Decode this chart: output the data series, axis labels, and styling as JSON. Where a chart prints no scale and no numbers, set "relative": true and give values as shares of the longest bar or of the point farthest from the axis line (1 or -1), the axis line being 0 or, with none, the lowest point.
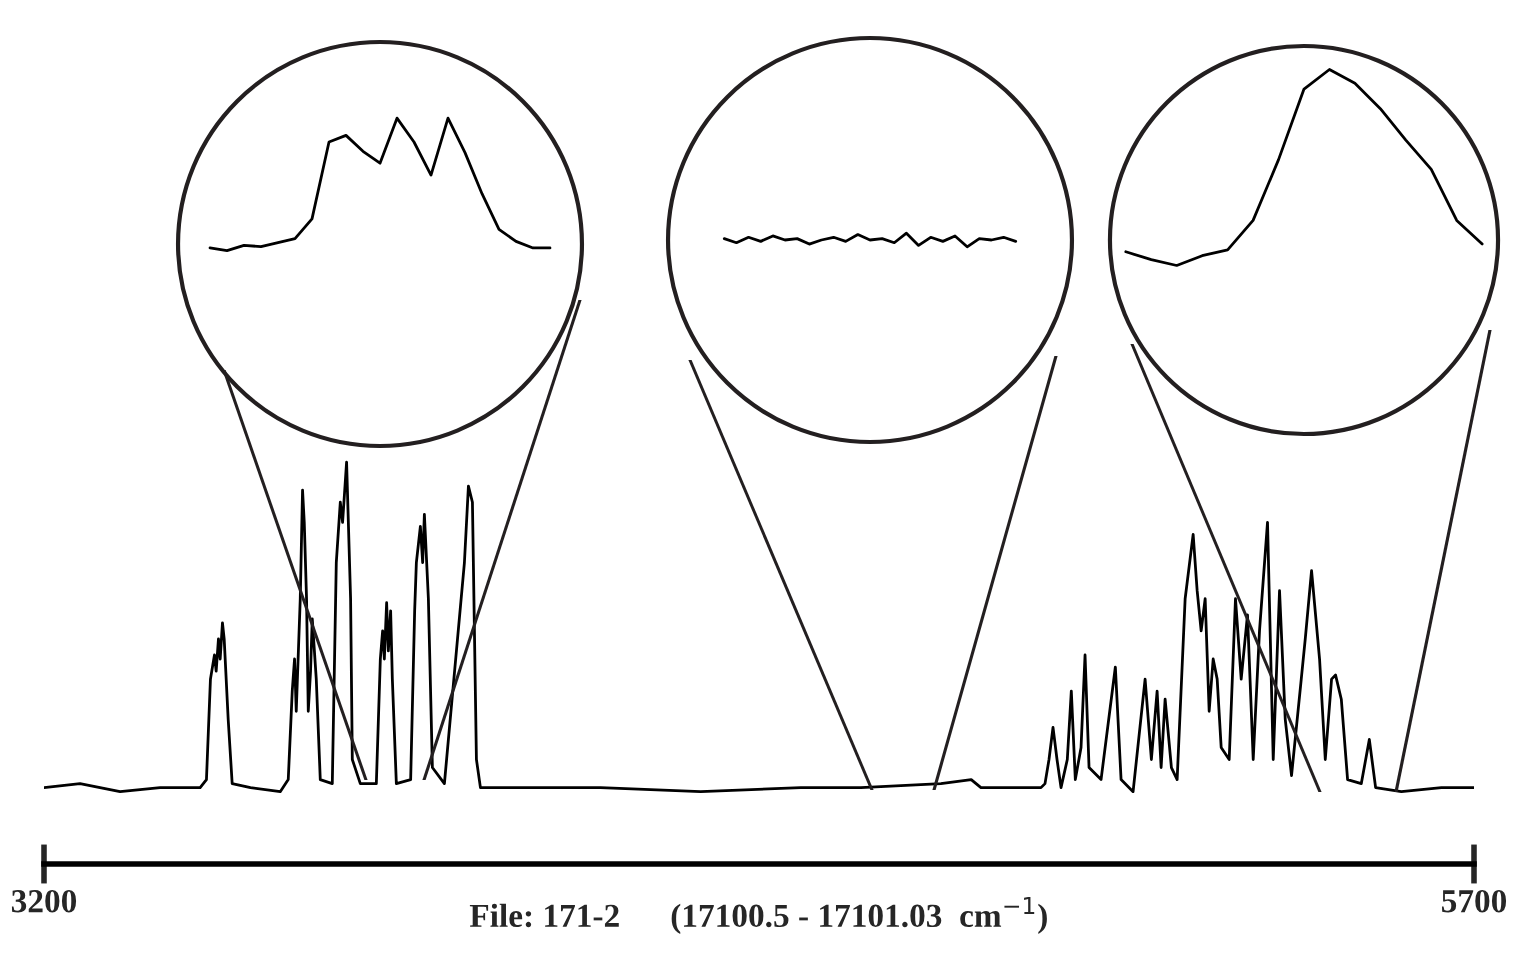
{
  "chart_data": [
    {
      "type": "line",
      "relative": true,
      "color": "#000000",
      "grid": false,
      "tick_labels": "x",
      "xlim": [
        3200,
        5700
      ],
      "xticks": [
        3200,
        5700
      ],
      "xlabel": "File: 171-2      (17100.5 - 17101.03  cm$^{−1}$)",
      "x": [
        3200,
        3263,
        3333,
        3403,
        3473,
        3484,
        3491,
        3498,
        3501,
        3505,
        3508,
        3512,
        3515,
        3522,
        3529,
        3561,
        3613,
        3627,
        3634,
        3638,
        3641,
        3648,
        3652,
        3655,
        3659,
        3662,
        3666,
        3669,
        3676,
        3683,
        3704,
        3711,
        3718,
        3722,
        3729,
        3736,
        3739,
        3753,
        3781,
        3788,
        3792,
        3795,
        3799,
        3802,
        3806,
        3809,
        3816,
        3841,
        3848,
        3851,
        3858,
        3862,
        3865,
        3872,
        3879,
        3900,
        3935,
        3942,
        3949,
        3956,
        3963,
        4033,
        4173,
        4348,
        4523,
        4628,
        4768,
        4821,
        4838,
        4943,
        4950,
        4957,
        4964,
        4971,
        4978,
        4989,
        4996,
        5003,
        5013,
        5020,
        5027,
        5048,
        5073,
        5083,
        5104,
        5125,
        5136,
        5146,
        5153,
        5160,
        5171,
        5181,
        5195,
        5209,
        5216,
        5223,
        5230,
        5237,
        5244,
        5251,
        5258,
        5272,
        5283,
        5293,
        5304,
        5314,
        5325,
        5339,
        5349,
        5360,
        5370,
        5381,
        5398,
        5405,
        5416,
        5430,
        5440,
        5451,
        5458,
        5468,
        5479,
        5503,
        5517,
        5528,
        5573,
        5643,
        5700
      ],
      "values": [
        0.19,
        0.2,
        0.18,
        0.19,
        0.19,
        0.21,
        0.46,
        0.52,
        0.48,
        0.56,
        0.51,
        0.6,
        0.56,
        0.36,
        0.2,
        0.19,
        0.18,
        0.21,
        0.43,
        0.51,
        0.38,
        0.66,
        0.93,
        0.85,
        0.66,
        0.38,
        0.48,
        0.61,
        0.46,
        0.21,
        0.2,
        0.75,
        0.9,
        0.85,
        1.0,
        0.66,
        0.26,
        0.2,
        0.2,
        0.51,
        0.58,
        0.51,
        0.65,
        0.53,
        0.63,
        0.46,
        0.2,
        0.21,
        0.63,
        0.75,
        0.84,
        0.75,
        0.87,
        0.66,
        0.24,
        0.2,
        0.75,
        0.94,
        0.9,
        0.26,
        0.19,
        0.19,
        0.19,
        0.18,
        0.19,
        0.19,
        0.2,
        0.21,
        0.19,
        0.19,
        0.2,
        0.26,
        0.34,
        0.26,
        0.19,
        0.26,
        0.43,
        0.21,
        0.29,
        0.52,
        0.24,
        0.21,
        0.49,
        0.21,
        0.18,
        0.46,
        0.26,
        0.43,
        0.24,
        0.41,
        0.24,
        0.21,
        0.66,
        0.82,
        0.68,
        0.58,
        0.66,
        0.38,
        0.51,
        0.46,
        0.29,
        0.26,
        0.66,
        0.46,
        0.62,
        0.26,
        0.58,
        0.85,
        0.26,
        0.68,
        0.36,
        0.22,
        0.46,
        0.56,
        0.73,
        0.51,
        0.26,
        0.46,
        0.47,
        0.41,
        0.21,
        0.2,
        0.31,
        0.19,
        0.18,
        0.19,
        0.19
      ]
    },
    {
      "type": "line",
      "relative": true,
      "color": "#000000",
      "grid": false,
      "tick_labels": false,
      "categories": [
        null,
        null,
        null,
        null,
        null,
        null,
        null,
        null,
        null,
        null,
        null,
        null,
        null,
        null,
        null,
        null,
        null,
        null,
        null,
        null,
        null
      ],
      "values": [
        0.02,
        0,
        0.04,
        0.03,
        0.06,
        0.09,
        0.24,
        0.82,
        0.87,
        0.75,
        0.66,
        1.0,
        0.82,
        0.57,
        1.0,
        0.74,
        0.43,
        0.16,
        0.07,
        0.02,
        0.02
      ]
    },
    {
      "type": "line",
      "relative": true,
      "color": "#000000",
      "grid": false,
      "tick_labels": false,
      "categories": [
        null,
        null,
        null,
        null,
        null,
        null,
        null,
        null,
        null,
        null,
        null,
        null,
        null,
        null,
        null,
        null,
        null,
        null,
        null,
        null,
        null,
        null,
        null,
        null,
        null
      ],
      "values": [
        0.6,
        0.3,
        0.7,
        0.4,
        0.8,
        0.5,
        0.6,
        0.2,
        0.5,
        0.7,
        0.4,
        0.9,
        0.5,
        0.6,
        0.3,
        1.0,
        0.1,
        0.7,
        0.4,
        0.8,
        0,
        0.6,
        0.5,
        0.7,
        0.4
      ]
    },
    {
      "type": "line",
      "relative": true,
      "color": "#000000",
      "grid": false,
      "tick_labels": false,
      "categories": [
        null,
        null,
        null,
        null,
        null,
        null,
        null,
        null,
        null,
        null,
        null,
        null,
        null,
        null,
        null
      ],
      "values": [
        0.07,
        0.03,
        0,
        0.05,
        0.08,
        0.23,
        0.54,
        0.9,
        1.0,
        0.93,
        0.8,
        0.64,
        0.49,
        0.23,
        0.11
      ]
    }
  ]
}
